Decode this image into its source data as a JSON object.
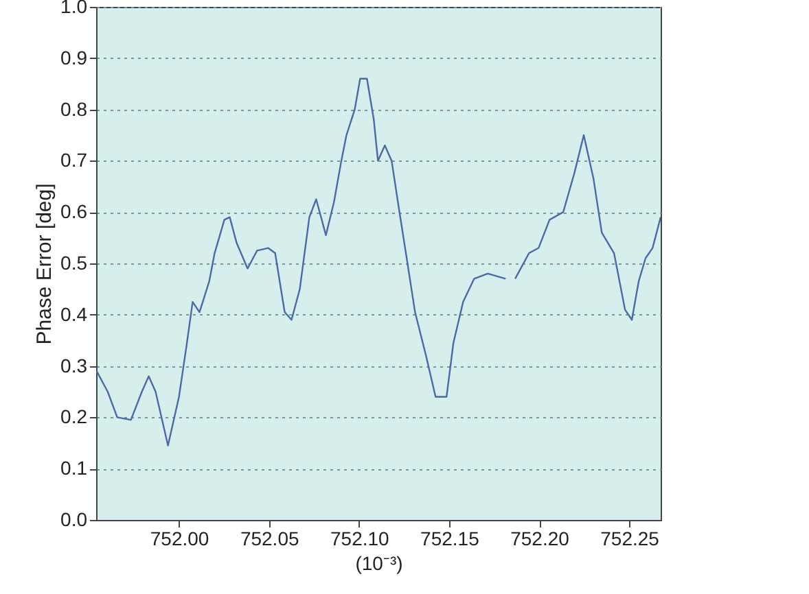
{
  "chart_data": {
    "type": "line",
    "ylabel": "Phase Error [deg]",
    "xlabel": "(10⁻³)",
    "x": [
      751.9543,
      751.9604,
      751.9657,
      751.9733,
      751.9794,
      751.9832,
      751.987,
      751.9939,
      752.0,
      752.0038,
      752.0076,
      752.0114,
      752.0168,
      752.0198,
      752.0252,
      752.0282,
      752.032,
      752.0381,
      752.0434,
      752.0495,
      752.0534,
      752.0587,
      752.0625,
      752.0671,
      752.0724,
      752.0762,
      752.0816,
      752.0861,
      752.0899,
      752.093,
      752.0976,
      752.1006,
      752.1044,
      752.1082,
      752.1105,
      752.1143,
      752.1181,
      752.122,
      752.1258,
      752.1311,
      752.1372,
      752.1425,
      752.1486,
      752.1524,
      752.1578,
      752.1639,
      752.1715,
      752.1814,
      752.1845,
      752.1867,
      752.1944,
      752.1997,
      752.2058,
      752.2134,
      752.2195,
      752.2248,
      752.2302,
      752.2348,
      752.2416,
      752.2477,
      752.2515,
      752.2553,
      752.2591,
      752.263,
      752.2675
    ],
    "series": [
      {
        "color": "#4a6aa8",
        "values": [
          0.29,
          0.25,
          0.2,
          0.195,
          0.25,
          0.28,
          0.25,
          0.145,
          0.24,
          0.33,
          0.425,
          0.405,
          0.465,
          0.52,
          0.585,
          0.59,
          0.54,
          0.49,
          0.525,
          0.53,
          0.52,
          0.405,
          0.39,
          0.45,
          0.59,
          0.625,
          0.555,
          0.62,
          0.695,
          0.75,
          0.8,
          0.86,
          0.86,
          0.78,
          0.7,
          0.73,
          0.7,
          0.61,
          0.525,
          0.405,
          0.32,
          0.24,
          0.24,
          0.345,
          0.425,
          0.47,
          0.48,
          0.47,
          null,
          0.47,
          0.52,
          0.53,
          0.585,
          0.6,
          0.675,
          0.75,
          0.665,
          0.56,
          0.52,
          0.41,
          0.39,
          0.465,
          0.51,
          0.53,
          0.59
        ]
      }
    ],
    "xlim": [
      751.954,
      752.2675
    ],
    "xticks": [
      {
        "value": 752.0,
        "label": "752.00"
      },
      752.05,
      {
        "value": 752.1,
        "label": "752.10"
      },
      752.15,
      {
        "value": 752.2,
        "label": "752.20"
      },
      752.25
    ],
    "ylim": [
      0,
      1
    ],
    "yticks": [
      {
        "value": 0,
        "label": "0.0"
      },
      0.1,
      0.2,
      0.3,
      0.4,
      0.5,
      0.6,
      0.7,
      0.8,
      0.9,
      {
        "value": 1,
        "label": "1.0"
      }
    ],
    "grid": "y",
    "marker": "none",
    "line_style": "solid"
  }
}
